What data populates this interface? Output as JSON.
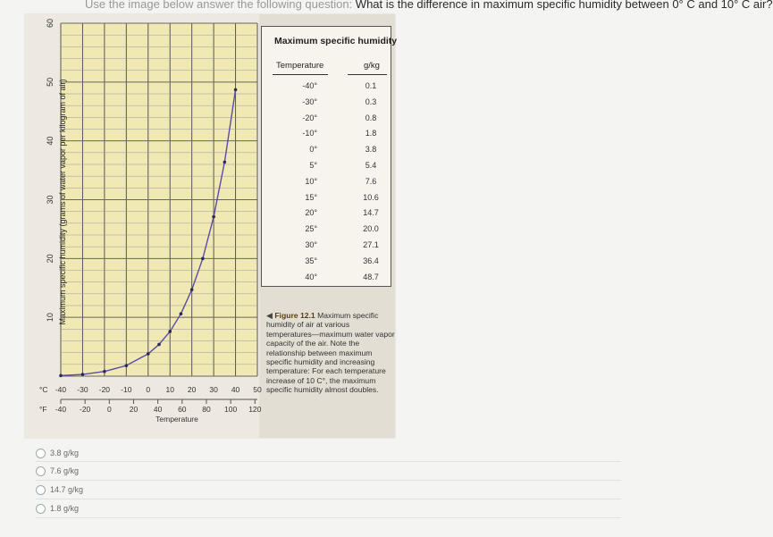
{
  "question": {
    "prefix": "Use the image below answer the following question:",
    "text": "What is the difference in maximum specific humidity between 0° C and 10° C air?"
  },
  "figure": {
    "y_axis_label": "Maximum specific humidity (grams of water vapor per kilogram of air)",
    "y_ticks": [
      "60",
      "50",
      "40",
      "30",
      "20",
      "10"
    ],
    "celsius_unit": "°C",
    "celsius_ticks": [
      "-40",
      "-30",
      "-20",
      "-10",
      "0",
      "10",
      "20",
      "30",
      "40",
      "50"
    ],
    "fahrenheit_unit": "°F",
    "fahrenheit_ticks": [
      "-40",
      "-20",
      "0",
      "20",
      "40",
      "60",
      "80",
      "100",
      "120"
    ],
    "x_axis_label": "Temperature",
    "curve_color": "#5a4aa8",
    "table": {
      "title": "Maximum specific humidity",
      "col_temp": "Temperature",
      "col_unit": "g/kg",
      "rows": [
        {
          "temp": "-40°",
          "value": "0.1"
        },
        {
          "temp": "-30°",
          "value": "0.3"
        },
        {
          "temp": "-20°",
          "value": "0.8"
        },
        {
          "temp": "-10°",
          "value": "1.8"
        },
        {
          "temp": "0°",
          "value": "3.8"
        },
        {
          "temp": "5°",
          "value": "5.4"
        },
        {
          "temp": "10°",
          "value": "7.6"
        },
        {
          "temp": "15°",
          "value": "10.6"
        },
        {
          "temp": "20°",
          "value": "14.7"
        },
        {
          "temp": "25°",
          "value": "20.0"
        },
        {
          "temp": "30°",
          "value": "27.1"
        },
        {
          "temp": "35°",
          "value": "36.4"
        },
        {
          "temp": "40°",
          "value": "48.7"
        }
      ]
    },
    "caption": {
      "figure_label": "Figure 12.1",
      "title": "Maximum specific humidity of air at various temperatures—maximum water vapor capacity of the air.",
      "body": "Note the relationship between maximum specific humidity and increasing temperature: For each temperature increase of 10 C°, the maximum specific humidity almost doubles."
    }
  },
  "chart_data": {
    "type": "line",
    "xlabel": "Temperature",
    "ylabel": "Maximum specific humidity (grams of water vapor per kilogram of air)",
    "x": [
      -40,
      -30,
      -20,
      -10,
      0,
      5,
      10,
      15,
      20,
      25,
      30,
      35,
      40
    ],
    "values": [
      0.1,
      0.3,
      0.8,
      1.8,
      3.8,
      5.4,
      7.6,
      10.6,
      14.7,
      20.0,
      27.1,
      36.4,
      48.7
    ],
    "xlim": [
      -40,
      50
    ],
    "ylim": [
      0,
      60
    ],
    "grid": true
  },
  "answers": [
    {
      "label": "3.8 g/kg"
    },
    {
      "label": "7.6 g/kg"
    },
    {
      "label": "14.7 g/kg"
    },
    {
      "label": "1.8 g/kg"
    }
  ]
}
